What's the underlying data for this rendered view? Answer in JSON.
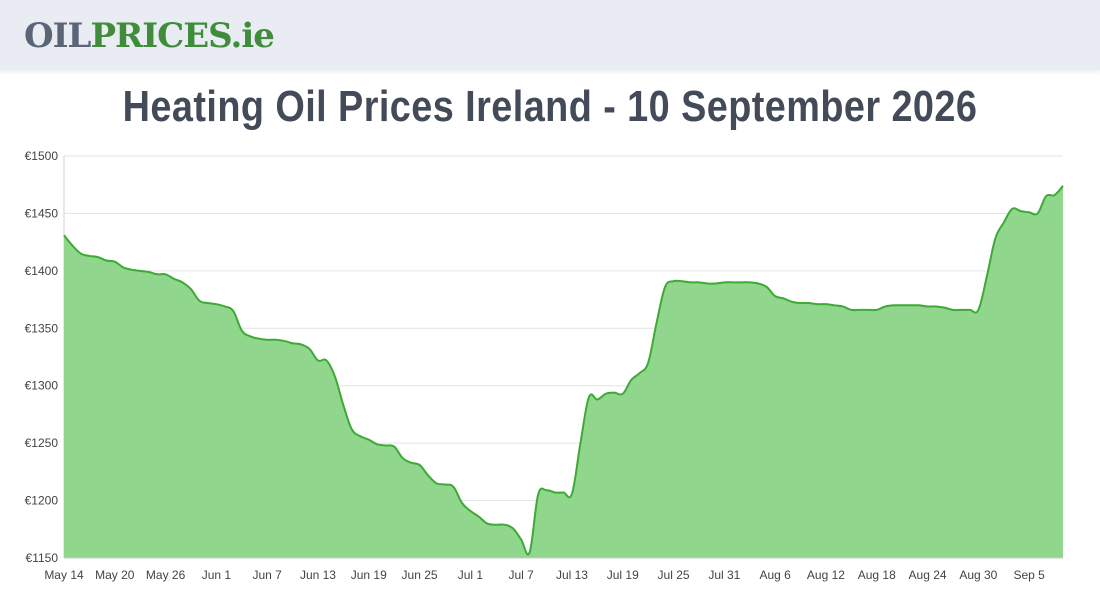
{
  "header": {
    "logo_part1": "OIL",
    "logo_part2": "PRICES",
    "logo_part3": ".ie"
  },
  "title": "Heating Oil Prices Ireland - 10 September 2026",
  "colors": {
    "line": "#3daa35",
    "fill": "#90d68c",
    "logo_gray": "#5a6577",
    "logo_green": "#3f8c3a",
    "title": "#434b59"
  },
  "chart_data": {
    "type": "area",
    "title": "Heating Oil Prices Ireland - 10 September 2026",
    "xlabel": "",
    "ylabel": "",
    "ylim": [
      1150,
      1500
    ],
    "yticks": [
      1150,
      1200,
      1250,
      1300,
      1350,
      1400,
      1450,
      1500
    ],
    "ytick_labels": [
      "€1150",
      "€1200",
      "€1250",
      "€1300",
      "€1350",
      "€1400",
      "€1450",
      "€1500"
    ],
    "xtick_labels": [
      "May 14",
      "May 20",
      "May 26",
      "Jun 1",
      "Jun 7",
      "Jun 13",
      "Jun 19",
      "Jun 25",
      "Jul 1",
      "Jul 7",
      "Jul 13",
      "Jul 19",
      "Jul 25",
      "Jul 31",
      "Aug 6",
      "Aug 12",
      "Aug 18",
      "Aug 24",
      "Aug 30",
      "Sep 5"
    ],
    "grid": true,
    "legend": "none",
    "series": [
      {
        "values": [
          1431,
          1422,
          1415,
          1413,
          1412,
          1409,
          1408,
          1403,
          1401,
          1400,
          1399,
          1397,
          1397,
          1393,
          1390,
          1384,
          1374,
          1372,
          1371,
          1369,
          1365,
          1348,
          1343,
          1341,
          1340,
          1340,
          1339,
          1337,
          1336,
          1332,
          1322,
          1322,
          1308,
          1283,
          1262,
          1256,
          1253,
          1249,
          1248,
          1247,
          1237,
          1233,
          1231,
          1222,
          1215,
          1214,
          1212,
          1198,
          1191,
          1186,
          1180,
          1179,
          1179,
          1176,
          1166,
          1155,
          1205,
          1209,
          1207,
          1207,
          1206,
          1250,
          1290,
          1288,
          1293,
          1294,
          1293,
          1305,
          1311,
          1320,
          1355,
          1386,
          1391,
          1391,
          1390,
          1390,
          1389,
          1389,
          1390,
          1390,
          1390,
          1390,
          1389,
          1386,
          1378,
          1376,
          1373,
          1372,
          1372,
          1371,
          1371,
          1370,
          1369,
          1366,
          1366,
          1366,
          1366,
          1369,
          1370,
          1370,
          1370,
          1370,
          1369,
          1369,
          1368,
          1366,
          1366,
          1366,
          1366,
          1395,
          1428,
          1442,
          1454,
          1452,
          1451,
          1450,
          1465,
          1466,
          1474
        ]
      }
    ]
  }
}
